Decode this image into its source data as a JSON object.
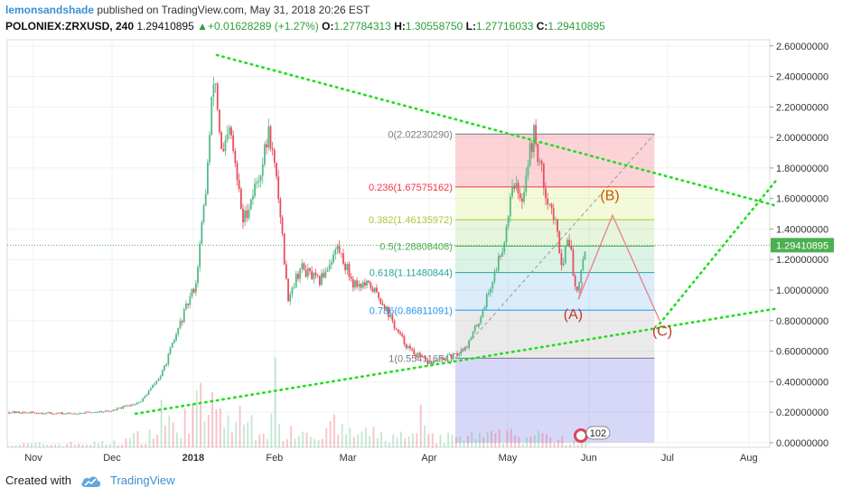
{
  "header": {
    "author": "lemonsandshade",
    "published": "published on TradingView.com, May 31, 2018 20:26 EST",
    "symbol": "POLONIEX:ZRXUSD, 240",
    "last": "1.29410895",
    "change_arrow": "▲",
    "change": "+0.01628289 (+1.27%)",
    "o_label": "O:",
    "o": "1.27784313",
    "h_label": "H:",
    "h": "1.30558750",
    "l_label": "L:",
    "l": "1.27716033",
    "c_label": "C:",
    "c": "1.29410895"
  },
  "footer": {
    "created_with": "Created with",
    "brand": "TradingView"
  },
  "colors": {
    "up": "#53b987",
    "down": "#eb4d5c",
    "price_line": "#4caf50",
    "trend": "#22dd22",
    "wave": "#e8808a",
    "wave_label_A": "#c0392b",
    "wave_label_B": "#d35400",
    "label_bg": "#4caf50"
  },
  "chart_data": {
    "type": "candlestick",
    "y_axis_ticks": [
      "2.60000000",
      "2.40000000",
      "2.20000000",
      "2.00000000",
      "1.80000000",
      "1.60000000",
      "1.40000000",
      "1.20000000",
      "1.00000000",
      "0.80000000",
      "0.60000000",
      "0.40000000",
      "0.20000000",
      "0.00000000"
    ],
    "y_axis_values": [
      2.6,
      2.4,
      2.2,
      2.0,
      1.8,
      1.6,
      1.4,
      1.2,
      1.0,
      0.8,
      0.6,
      0.4,
      0.2,
      0.0
    ],
    "ylim": [
      -0.03,
      2.64
    ],
    "x_axis_ticks": [
      {
        "label": "Nov",
        "date": "2017-11-01"
      },
      {
        "label": "Dec",
        "date": "2017-12-01"
      },
      {
        "label": "2018",
        "date": "2018-01-01"
      },
      {
        "label": "Feb",
        "date": "2018-02-01"
      },
      {
        "label": "Mar",
        "date": "2018-03-01"
      },
      {
        "label": "Apr",
        "date": "2018-04-01"
      },
      {
        "label": "May",
        "date": "2018-05-01"
      },
      {
        "label": "Jun",
        "date": "2018-06-01"
      },
      {
        "label": "Jul",
        "date": "2018-07-01"
      },
      {
        "label": "Aug",
        "date": "2018-08-01"
      }
    ],
    "xlim": [
      "2017-10-22",
      "2018-08-09"
    ],
    "last_price": 1.29410895,
    "last_price_label": "1.29410895",
    "price_path": [
      [
        "2017-10-22",
        0.2
      ],
      [
        "2017-11-15",
        0.19
      ],
      [
        "2017-12-01",
        0.21
      ],
      [
        "2017-12-12",
        0.27
      ],
      [
        "2017-12-20",
        0.45
      ],
      [
        "2017-12-27",
        0.78
      ],
      [
        "2018-01-02",
        1.05
      ],
      [
        "2018-01-06",
        1.7
      ],
      [
        "2018-01-09",
        2.45
      ],
      [
        "2018-01-12",
        1.85
      ],
      [
        "2018-01-15",
        2.05
      ],
      [
        "2018-01-20",
        1.45
      ],
      [
        "2018-01-27",
        1.8
      ],
      [
        "2018-01-30",
        2.05
      ],
      [
        "2018-02-03",
        1.55
      ],
      [
        "2018-02-06",
        0.95
      ],
      [
        "2018-02-11",
        1.15
      ],
      [
        "2018-02-18",
        1.05
      ],
      [
        "2018-02-25",
        1.28
      ],
      [
        "2018-03-03",
        1.05
      ],
      [
        "2018-03-10",
        1.02
      ],
      [
        "2018-03-15",
        0.9
      ],
      [
        "2018-03-20",
        0.72
      ],
      [
        "2018-03-25",
        0.6
      ],
      [
        "2018-04-01",
        0.52
      ],
      [
        "2018-04-06",
        0.55
      ],
      [
        "2018-04-11",
        0.57
      ],
      [
        "2018-04-16",
        0.65
      ],
      [
        "2018-04-20",
        0.8
      ],
      [
        "2018-04-25",
        1.05
      ],
      [
        "2018-04-30",
        1.35
      ],
      [
        "2018-05-03",
        1.75
      ],
      [
        "2018-05-06",
        1.55
      ],
      [
        "2018-05-09",
        1.88
      ],
      [
        "2018-05-11",
        2.02
      ],
      [
        "2018-05-15",
        1.68
      ],
      [
        "2018-05-19",
        1.45
      ],
      [
        "2018-05-22",
        1.15
      ],
      [
        "2018-05-24",
        1.4
      ],
      [
        "2018-05-27",
        0.98
      ],
      [
        "2018-05-29",
        1.15
      ],
      [
        "2018-05-31",
        1.29
      ]
    ],
    "volume": {
      "scale_max": 0.36,
      "path": [
        [
          "2017-10-22",
          0.01
        ],
        [
          "2017-12-01",
          0.015
        ],
        [
          "2017-12-20",
          0.06
        ],
        [
          "2018-01-05",
          0.15
        ],
        [
          "2018-01-12",
          0.1
        ],
        [
          "2018-02-05",
          0.07
        ],
        [
          "2018-03-01",
          0.05
        ],
        [
          "2018-04-01",
          0.03
        ],
        [
          "2018-05-01",
          0.04
        ],
        [
          "2018-05-31",
          0.03
        ]
      ]
    },
    "fibonacci": {
      "start": "2018-04-11",
      "end": "2018-06-26",
      "levels": [
        {
          "ratio": "0",
          "value": 2.0223029,
          "label": "0(2.02230290)",
          "color": "#787b86",
          "fill": "rgba(242,54,69,0.22)"
        },
        {
          "ratio": "0.236",
          "value": 1.67575162,
          "label": "0.236(1.67575162)",
          "color": "#f23645",
          "fill": "rgba(200,230,80,0.22)"
        },
        {
          "ratio": "0.382",
          "value": 1.46135972,
          "label": "0.382(1.46135972)",
          "color": "#b2c43a",
          "fill": "rgba(140,210,90,0.22)"
        },
        {
          "ratio": "0.5",
          "value": 1.28808408,
          "label": "0.5(1.28808408)",
          "color": "#4caf50",
          "fill": "rgba(90,200,140,0.22)"
        },
        {
          "ratio": "0.618",
          "value": 1.11480844,
          "label": "0.618(1.11480844)",
          "color": "#26a69a",
          "fill": "rgba(90,170,230,0.22)"
        },
        {
          "ratio": "0.786",
          "value": 0.86811091,
          "label": "0.786(0.86811091)",
          "color": "#2196f3",
          "fill": "rgba(170,170,170,0.25)"
        },
        {
          "ratio": "1",
          "value": 0.5541,
          "label": "1(0.55411654)",
          "color": "#787b86",
          "fill": "rgba(110,110,230,0.28)"
        }
      ],
      "bottom": 0.0
    },
    "trendlines": [
      {
        "name": "upper",
        "points": [
          [
            "2018-01-10",
            2.54
          ],
          [
            "2018-08-12",
            1.55
          ]
        ]
      },
      {
        "name": "lower",
        "points": [
          [
            "2017-12-10",
            0.19
          ],
          [
            "2018-08-12",
            0.88
          ]
        ]
      },
      {
        "name": "right",
        "points": [
          [
            "2018-06-28",
            0.78
          ],
          [
            "2018-08-12",
            1.73
          ]
        ]
      }
    ],
    "diagonal": {
      "points": [
        [
          "2018-04-11",
          0.5541
        ],
        [
          "2018-06-26",
          2.0223
        ]
      ]
    },
    "abc_path": [
      [
        "2018-05-28",
        0.94
      ],
      [
        "2018-06-10",
        1.49
      ],
      [
        "2018-06-28",
        0.8
      ]
    ],
    "abc_labels": [
      {
        "text": "(A)",
        "date": "2018-05-26",
        "value": 0.81
      },
      {
        "text": "(B)",
        "date": "2018-06-09",
        "value": 1.59
      },
      {
        "text": "(C)",
        "date": "2018-06-29",
        "value": 0.7
      }
    ],
    "events_badge": "102"
  }
}
